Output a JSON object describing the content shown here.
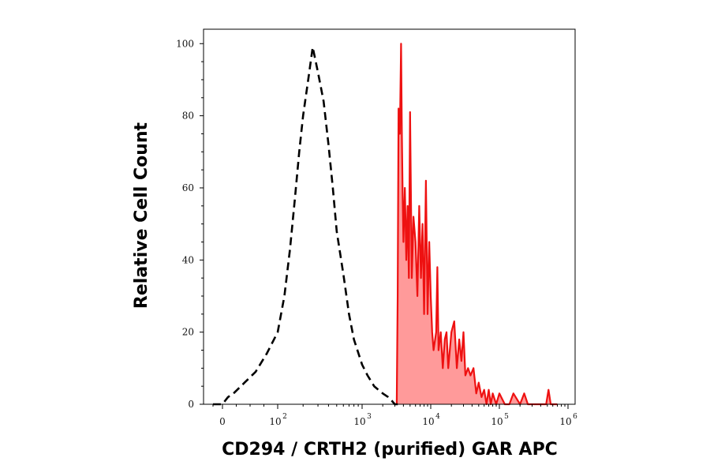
{
  "chart_data": {
    "type": "area",
    "xlabel": "CD294 / CRTH2 (purified) GAR APC",
    "ylabel": "Relative Cell Count",
    "x_scale": "biexponential",
    "xlim": [
      -30,
      1000000
    ],
    "ylim": [
      0,
      104
    ],
    "grid": false,
    "y_ticks": [
      0,
      20,
      40,
      60,
      80,
      100
    ],
    "y_tick_labels": [
      "0",
      "20",
      "40",
      "60",
      "80",
      "100"
    ],
    "x_ticks": [
      {
        "value": 0,
        "label": "0"
      },
      {
        "value": 100,
        "base": "10",
        "exp": "2"
      },
      {
        "value": 1000,
        "base": "10",
        "exp": "3"
      },
      {
        "value": 10000,
        "base": "10",
        "exp": "4"
      },
      {
        "value": 100000,
        "base": "10",
        "exp": "5"
      },
      {
        "value": 1000000,
        "base": "10",
        "exp": "6"
      }
    ],
    "series": [
      {
        "style": "dashed-black-outline",
        "color": "#000000",
        "x": [
          -20,
          0,
          5,
          10,
          20,
          40,
          60,
          80,
          100,
          120,
          140,
          160,
          180,
          200,
          230,
          260,
          300,
          350,
          400,
          450,
          500,
          600,
          700,
          800,
          1000,
          1200,
          1500,
          2000,
          2400,
          2700,
          3000,
          3500
        ],
        "y": [
          0,
          0,
          1,
          2,
          3,
          6,
          9,
          14,
          20,
          30,
          43,
          57,
          70,
          80,
          90,
          99,
          92,
          84,
          72,
          60,
          48,
          36,
          25,
          18,
          11,
          8,
          5,
          3,
          2,
          1,
          0,
          0
        ]
      },
      {
        "style": "filled-red",
        "color": "#ee1111",
        "fill": "#ff9a9a",
        "x": [
          3200,
          3300,
          3400,
          3550,
          3700,
          3800,
          3900,
          4000,
          4200,
          4400,
          4600,
          4800,
          5000,
          5300,
          5600,
          6000,
          6400,
          6800,
          7200,
          7600,
          8000,
          8500,
          9000,
          9500,
          10000,
          10500,
          11000,
          12000,
          12500,
          13000,
          14000,
          15000,
          16000,
          17000,
          18000,
          20000,
          22000,
          24000,
          26000,
          28000,
          30000,
          32000,
          35000,
          38000,
          42000,
          46000,
          50000,
          55000,
          60000,
          65000,
          70000,
          75000,
          80000,
          90000,
          100000,
          120000,
          140000,
          160000,
          200000,
          230000,
          260000,
          300000,
          400000,
          480000,
          520000,
          560000,
          700000
        ],
        "y": [
          0,
          30,
          82,
          75,
          100,
          75,
          58,
          45,
          60,
          40,
          55,
          35,
          81,
          35,
          52,
          45,
          30,
          55,
          35,
          50,
          25,
          62,
          25,
          45,
          30,
          20,
          15,
          20,
          38,
          15,
          20,
          10,
          18,
          20,
          10,
          20,
          23,
          10,
          18,
          12,
          20,
          8,
          10,
          8,
          10,
          3,
          6,
          2,
          4,
          0,
          4,
          0,
          3,
          0,
          3,
          0,
          0,
          3,
          0,
          3,
          0,
          0,
          0,
          0,
          4,
          0,
          0
        ]
      }
    ]
  }
}
